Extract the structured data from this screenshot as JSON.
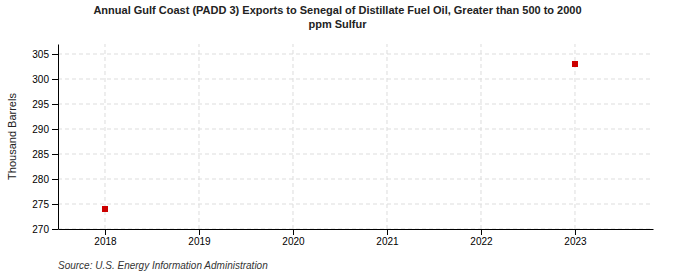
{
  "chart_data": {
    "type": "scatter",
    "title": "Annual Gulf Coast (PADD 3) Exports to Senegal of Distillate Fuel Oil, Greater than 500 to 2000\nppm Sulfur",
    "ylabel": "Thousand Barrels",
    "source": "Source: U.S. Energy Information Administration",
    "x": [
      2018,
      2023
    ],
    "values": [
      274,
      303
    ],
    "color": "#cc0000",
    "marker": "square",
    "xlim": [
      2017.5,
      2023.83
    ],
    "ylim": [
      270,
      307
    ],
    "xticks": [
      2018,
      2019,
      2020,
      2021,
      2022,
      2023
    ],
    "yticks": [
      270,
      275,
      280,
      285,
      290,
      295,
      300,
      305
    ],
    "grid": true
  }
}
